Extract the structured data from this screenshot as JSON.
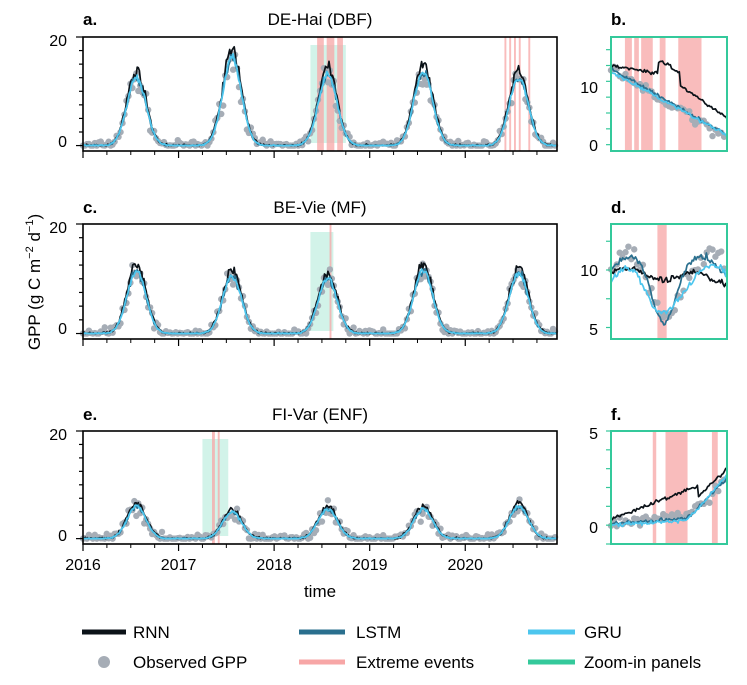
{
  "figure": {
    "ylabel": "GPP (g C m",
    "ylabel_sup1": "−2",
    "ylabel_mid": " d",
    "ylabel_sup2": "−1",
    "ylabel_end": ")",
    "xlabel": "time"
  },
  "colors": {
    "rnn": "#0b1218",
    "lstm": "#2a6f8e",
    "gru": "#4dc6ee",
    "observed": "#a6adb6",
    "extreme": "#f7a6a6",
    "zoom": "#34c99b"
  },
  "legend": [
    {
      "key": "rnn",
      "label": "RNN",
      "kind": "line"
    },
    {
      "key": "lstm",
      "label": "LSTM",
      "kind": "line"
    },
    {
      "key": "gru",
      "label": "GRU",
      "kind": "line"
    },
    {
      "key": "observed",
      "label": "Observed GPP",
      "kind": "dot"
    },
    {
      "key": "extreme",
      "label": "Extreme events",
      "kind": "line"
    },
    {
      "key": "zoom",
      "label": "Zoom-in panels",
      "kind": "line"
    }
  ],
  "chart_data": [
    {
      "type": "line",
      "panel": "a.",
      "title": "DE-Hai (DBF)",
      "peaks": [
        12.5,
        16,
        13,
        13.5,
        12.5
      ],
      "ylim": [
        -1,
        20
      ],
      "yticks": [
        0,
        20
      ],
      "xlim": [
        2016.0,
        2020.96
      ],
      "xticks": [
        2016,
        2017,
        2018,
        2019,
        2020
      ],
      "extreme_events": [
        [
          2018.45,
          2018.52
        ],
        [
          2018.55,
          2018.63
        ],
        [
          2018.66,
          2018.72
        ],
        [
          2020.41,
          2020.43
        ],
        [
          2020.46,
          2020.48
        ],
        [
          2020.51,
          2020.53
        ],
        [
          2020.56,
          2020.58
        ],
        [
          2020.66,
          2020.68
        ]
      ],
      "zoom_window": [
        2018.38,
        2018.75
      ],
      "series": [
        "RNN",
        "LSTM",
        "GRU",
        "Observed GPP"
      ]
    },
    {
      "type": "line",
      "panel": "b.",
      "title": "",
      "ylim": [
        -1,
        17
      ],
      "yticks": [
        0,
        10
      ],
      "extreme_events": [
        [
          0.12,
          0.18
        ],
        [
          0.2,
          0.24
        ],
        [
          0.26,
          0.36
        ],
        [
          0.42,
          0.47
        ],
        [
          0.58,
          0.78
        ]
      ],
      "series": [
        "RNN",
        "LSTM",
        "GRU",
        "Observed GPP"
      ]
    },
    {
      "type": "line",
      "panel": "c.",
      "title": "BE-Vie (MF)",
      "peaks": [
        11.5,
        10.5,
        10,
        11.5,
        11
      ],
      "ylim": [
        -1,
        20
      ],
      "yticks": [
        0,
        20
      ],
      "xlim": [
        2016.0,
        2020.96
      ],
      "xticks": [
        2016,
        2017,
        2018,
        2019,
        2020
      ],
      "extreme_events": [
        [
          2018.58,
          2018.6
        ]
      ],
      "zoom_window": [
        2018.38,
        2018.62
      ],
      "series": [
        "RNN",
        "LSTM",
        "GRU",
        "Observed GPP"
      ]
    },
    {
      "type": "line",
      "panel": "d.",
      "title": "",
      "ylim": [
        4,
        14
      ],
      "yticks": [
        5,
        10
      ],
      "extreme_events": [
        [
          0.4,
          0.48
        ]
      ],
      "series": [
        "RNN",
        "LSTM",
        "GRU",
        "Observed GPP"
      ]
    },
    {
      "type": "line",
      "panel": "e.",
      "title": "FI-Var (ENF)",
      "peaks": [
        6,
        5,
        5.5,
        5.5,
        6
      ],
      "ylim": [
        -1,
        20
      ],
      "yticks": [
        0,
        20
      ],
      "xlim": [
        2016.0,
        2020.96
      ],
      "xticks": [
        2016,
        2017,
        2018,
        2019,
        2020
      ],
      "extreme_events": [
        [
          2017.35,
          2017.38
        ],
        [
          2017.41,
          2017.43
        ]
      ],
      "zoom_window": [
        2017.25,
        2017.52
      ],
      "series": [
        "RNN",
        "LSTM",
        "GRU",
        "Observed GPP"
      ]
    },
    {
      "type": "line",
      "panel": "f.",
      "title": "",
      "ylim": [
        -1,
        5
      ],
      "yticks": [
        0,
        5
      ],
      "extreme_events": [
        [
          0.36,
          0.39
        ],
        [
          0.47,
          0.66
        ],
        [
          0.87,
          0.92
        ]
      ],
      "series": [
        "RNN",
        "LSTM",
        "GRU",
        "Observed GPP"
      ]
    }
  ]
}
